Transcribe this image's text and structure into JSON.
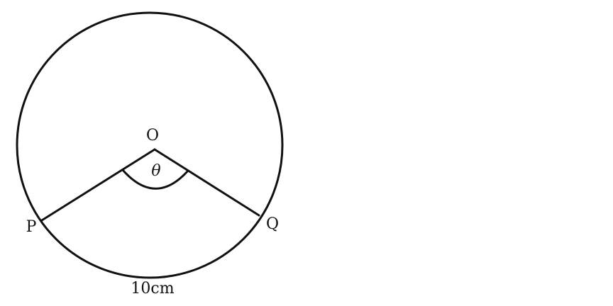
{
  "diagram": {
    "center_label": "O",
    "point_p_label": "P",
    "point_q_label": "Q",
    "angle_label": "θ",
    "arc_length_label": "10cm"
  }
}
